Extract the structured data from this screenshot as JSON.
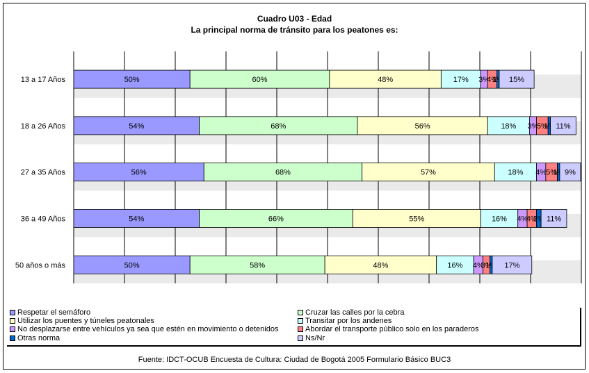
{
  "title": "Cuadro U03 - Edad",
  "subtitle": "La principal norma de tránsito para los peatones es:",
  "source": "Fuente: IDCT-OCUB Encuesta de Cultura: Ciudad de Bogotá 2005 Formulario Básico BUC3",
  "chart_data": {
    "type": "bar",
    "orientation": "horizontal",
    "stacked": true,
    "grid": true,
    "legend_position": "bottom",
    "categories": [
      "13 a 17 Años",
      "18 a 26 Años",
      "27 a 35 Años",
      "36 a 49 Años",
      "50 años o más"
    ],
    "series": [
      {
        "name": "Respetar el semáforo",
        "color": "#9999ff",
        "values": [
          50,
          54,
          56,
          54,
          50
        ],
        "labels": [
          "50%",
          "54%",
          "56%",
          "54%",
          "50%"
        ]
      },
      {
        "name": "Cruzar las calles por la cebra",
        "color": "#ccffcc",
        "values": [
          60,
          68,
          68,
          66,
          58
        ],
        "labels": [
          "60%",
          "68%",
          "68%",
          "66%",
          "58%"
        ]
      },
      {
        "name": "Utilizar los puentes y túneles peatonales",
        "color": "#ffffcc",
        "values": [
          48,
          56,
          57,
          55,
          48
        ],
        "labels": [
          "48%",
          "56%",
          "57%",
          "55%",
          "48%"
        ]
      },
      {
        "name": "Transitar por los andenes",
        "color": "#ccffff",
        "values": [
          17,
          18,
          18,
          16,
          16
        ],
        "labels": [
          "17%",
          "18%",
          "18%",
          "16%",
          "16%"
        ]
      },
      {
        "name": "No desplazarse entre vehículos ya sea que estén en movimiento o detenidos",
        "color": "#cc99ff",
        "values": [
          3,
          3,
          4,
          4,
          4
        ],
        "labels": [
          "3%",
          "3%",
          "4%",
          "4%",
          "4%"
        ]
      },
      {
        "name": "Abordar el transporte público solo en los paraderos",
        "color": "#ff8080",
        "values": [
          4,
          5,
          5,
          4,
          3
        ],
        "labels": [
          "4%",
          "5%",
          "5%",
          "4%",
          "3%"
        ]
      },
      {
        "name": "Otras norma",
        "color": "#0066cc",
        "values": [
          1,
          1,
          1,
          2,
          1
        ],
        "labels": [
          "1%",
          "1%",
          "1%",
          "2%",
          "1%"
        ]
      },
      {
        "name": "Ns/Nr",
        "color": "#ccccff",
        "values": [
          15,
          11,
          9,
          11,
          17
        ],
        "labels": [
          "15%",
          "11%",
          "9%",
          "11%",
          "17%"
        ]
      }
    ],
    "legend_columns": [
      [
        "Respetar el semáforo",
        "Utilizar los puentes y túneles peatonales",
        "No desplazarse entre vehículos ya sea que estén en movimiento o detenidos",
        "Otras norma"
      ],
      [
        "Cruzar las calles por la cebra",
        "Transitar por los andenes",
        "Abordar el transporte público solo en los paraderos",
        "Ns/Nr"
      ]
    ]
  }
}
